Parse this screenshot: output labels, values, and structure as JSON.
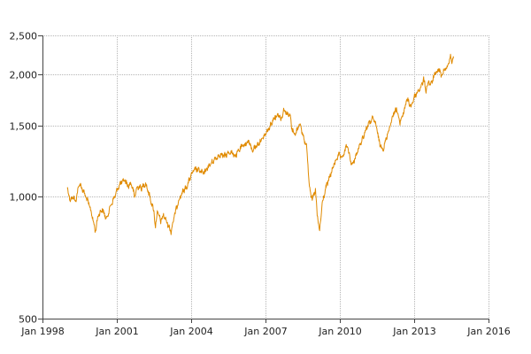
{
  "chart_data": {
    "type": "line",
    "title": "",
    "xlabel": "",
    "ylabel": "",
    "y_scale": "log",
    "grid": true,
    "x_ticks": [
      "1998-01-01",
      "2001-01-01",
      "2004-01-01",
      "2007-01-01",
      "2010-01-01",
      "2013-01-01",
      "2016-01-01"
    ],
    "x_tick_labels": [
      "Jan 1998",
      "Jan 2001",
      "Jan 2004",
      "Jan 2007",
      "Jan 2010",
      "Jan 2013",
      "Jan 2016"
    ],
    "y_ticks": [
      500,
      1000,
      1500,
      2000,
      2500
    ],
    "y_tick_labels": [
      "500",
      "1,000",
      "1,500",
      "2,000",
      "2,500"
    ],
    "xlim": [
      "1998-01-01",
      "2016-01-01"
    ],
    "ylim": [
      500,
      2500
    ],
    "series": [
      {
        "color": "#e08a00",
        "points": [
          [
            "1999-01-01",
            1050
          ],
          [
            "1999-02-15",
            980
          ],
          [
            "1999-04-01",
            1000
          ],
          [
            "1999-05-01",
            970
          ],
          [
            "1999-07-01",
            1080
          ],
          [
            "1999-08-15",
            1040
          ],
          [
            "1999-10-01",
            1000
          ],
          [
            "1999-11-15",
            960
          ],
          [
            "2000-01-01",
            900
          ],
          [
            "2000-02-20",
            820
          ],
          [
            "2000-04-01",
            900
          ],
          [
            "2000-06-01",
            930
          ],
          [
            "2000-08-01",
            880
          ],
          [
            "2000-10-01",
            950
          ],
          [
            "2000-12-01",
            1000
          ],
          [
            "2001-01-15",
            1050
          ],
          [
            "2001-03-01",
            1080
          ],
          [
            "2001-05-01",
            1100
          ],
          [
            "2001-06-15",
            1060
          ],
          [
            "2001-08-01",
            1080
          ],
          [
            "2001-09-20",
            1000
          ],
          [
            "2001-11-01",
            1060
          ],
          [
            "2002-01-01",
            1050
          ],
          [
            "2002-03-01",
            1080
          ],
          [
            "2002-05-01",
            1000
          ],
          [
            "2002-07-01",
            920
          ],
          [
            "2002-07-25",
            840
          ],
          [
            "2002-08-20",
            920
          ],
          [
            "2002-10-10",
            870
          ],
          [
            "2002-11-20",
            900
          ],
          [
            "2003-01-01",
            870
          ],
          [
            "2003-03-11",
            820
          ],
          [
            "2003-05-01",
            900
          ],
          [
            "2003-07-01",
            980
          ],
          [
            "2003-09-01",
            1030
          ],
          [
            "2003-11-01",
            1060
          ],
          [
            "2004-01-01",
            1130
          ],
          [
            "2004-03-01",
            1170
          ],
          [
            "2004-05-01",
            1160
          ],
          [
            "2004-07-01",
            1140
          ],
          [
            "2004-09-01",
            1180
          ],
          [
            "2004-12-01",
            1230
          ],
          [
            "2005-03-01",
            1270
          ],
          [
            "2005-05-01",
            1260
          ],
          [
            "2005-08-01",
            1290
          ],
          [
            "2005-10-15",
            1260
          ],
          [
            "2006-01-01",
            1320
          ],
          [
            "2006-05-01",
            1370
          ],
          [
            "2006-06-15",
            1300
          ],
          [
            "2006-09-01",
            1340
          ],
          [
            "2006-12-01",
            1400
          ],
          [
            "2007-03-01",
            1480
          ],
          [
            "2007-05-01",
            1560
          ],
          [
            "2007-07-15",
            1600
          ],
          [
            "2007-08-15",
            1550
          ],
          [
            "2007-10-01",
            1640
          ],
          [
            "2007-11-15",
            1600
          ],
          [
            "2008-01-01",
            1580
          ],
          [
            "2008-01-25",
            1470
          ],
          [
            "2008-03-15",
            1420
          ],
          [
            "2008-05-15",
            1520
          ],
          [
            "2008-07-15",
            1400
          ],
          [
            "2008-09-01",
            1320
          ],
          [
            "2008-10-10",
            1060
          ],
          [
            "2008-11-20",
            980
          ],
          [
            "2009-01-06",
            1040
          ],
          [
            "2009-02-01",
            900
          ],
          [
            "2009-03-09",
            820
          ],
          [
            "2009-04-15",
            960
          ],
          [
            "2009-06-15",
            1060
          ],
          [
            "2009-08-15",
            1130
          ],
          [
            "2009-10-15",
            1210
          ],
          [
            "2009-12-15",
            1270
          ],
          [
            "2010-02-01",
            1240
          ],
          [
            "2010-04-15",
            1340
          ],
          [
            "2010-07-01",
            1190
          ],
          [
            "2010-09-01",
            1270
          ],
          [
            "2010-11-15",
            1370
          ],
          [
            "2011-02-15",
            1500
          ],
          [
            "2011-04-30",
            1560
          ],
          [
            "2011-06-15",
            1510
          ],
          [
            "2011-08-10",
            1350
          ],
          [
            "2011-10-04",
            1310
          ],
          [
            "2011-12-01",
            1420
          ],
          [
            "2012-03-01",
            1600
          ],
          [
            "2012-04-15",
            1650
          ],
          [
            "2012-06-01",
            1520
          ],
          [
            "2012-08-01",
            1620
          ],
          [
            "2012-09-15",
            1740
          ],
          [
            "2012-11-15",
            1670
          ],
          [
            "2013-01-01",
            1760
          ],
          [
            "2013-02-15",
            1810
          ],
          [
            "2013-04-15",
            1870
          ],
          [
            "2013-05-20",
            1950
          ],
          [
            "2013-06-24",
            1830
          ],
          [
            "2013-08-01",
            1930
          ],
          [
            "2013-09-01",
            1880
          ],
          [
            "2013-10-15",
            1980
          ],
          [
            "2013-12-01",
            2030
          ],
          [
            "2014-01-15",
            2070
          ],
          [
            "2014-02-01",
            1960
          ],
          [
            "2014-03-15",
            2060
          ],
          [
            "2014-05-15",
            2100
          ],
          [
            "2014-06-15",
            2220
          ],
          [
            "2014-07-10",
            2160
          ],
          [
            "2014-08-05",
            2200
          ]
        ]
      }
    ]
  }
}
